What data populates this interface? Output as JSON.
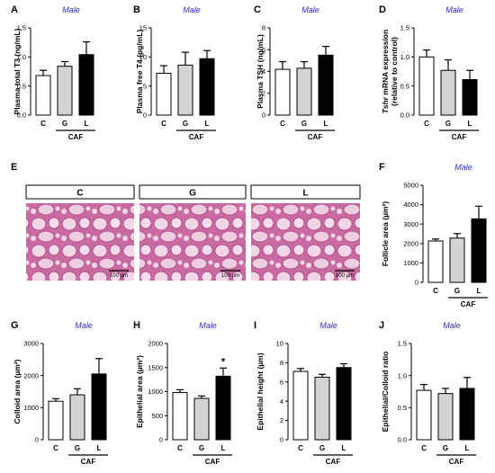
{
  "chart_data": [
    {
      "panel": "A",
      "type": "bar",
      "title": "Male",
      "ylabel": "Plasma total T3 (ng/mL)",
      "categories": [
        "C",
        "G",
        "L"
      ],
      "group_label": "CAF",
      "values": [
        0.68,
        0.84,
        1.04
      ],
      "errors": [
        0.09,
        0.08,
        0.22
      ],
      "ylim": [
        0,
        1.5
      ],
      "yticks": [
        "0.0",
        "0.5",
        "1.0",
        "1.5"
      ],
      "significance": [
        "",
        "",
        ""
      ]
    },
    {
      "panel": "B",
      "type": "bar",
      "title": "Male",
      "ylabel": "Plasma free T4 (pg/mL)",
      "categories": [
        "C",
        "G",
        "L"
      ],
      "group_label": "CAF",
      "values": [
        7.2,
        8.6,
        9.7
      ],
      "errors": [
        1.3,
        2.2,
        1.4
      ],
      "ylim": [
        0,
        15
      ],
      "yticks": [
        "0",
        "5",
        "10",
        "15"
      ],
      "significance": [
        "",
        "",
        ""
      ]
    },
    {
      "panel": "C",
      "type": "bar",
      "title": "Male",
      "ylabel": "Plasma TSH (ng/mL)",
      "categories": [
        "C",
        "G",
        "L"
      ],
      "group_label": "CAF",
      "values": [
        4.2,
        4.3,
        5.5
      ],
      "errors": [
        0.7,
        0.6,
        0.8
      ],
      "ylim": [
        0,
        8
      ],
      "yticks": [
        "0",
        "2",
        "4",
        "6",
        "8"
      ],
      "significance": [
        "",
        "",
        ""
      ]
    },
    {
      "panel": "D",
      "type": "bar",
      "title": "Male",
      "ylabel": "Tshr mRNA expression (relative to control)",
      "ylabel_italic": "Tshr",
      "ylabel_rest": " mRNA expression",
      "ylabel_line2": "(relative to control)",
      "categories": [
        "C",
        "G",
        "L"
      ],
      "group_label": "CAF",
      "values": [
        1.0,
        0.77,
        0.61
      ],
      "errors": [
        0.12,
        0.18,
        0.16
      ],
      "ylim": [
        0,
        1.5
      ],
      "yticks": [
        "0.0",
        "0.5",
        "1.0",
        "1.5"
      ],
      "significance": [
        "",
        "",
        ""
      ]
    },
    {
      "panel": "F",
      "type": "bar",
      "title": "Male",
      "ylabel": "Follicle area (µm²)",
      "categories": [
        "C",
        "G",
        "L"
      ],
      "group_label": "CAF",
      "values": [
        2130,
        2280,
        3270
      ],
      "errors": [
        100,
        230,
        650
      ],
      "ylim": [
        0,
        5000
      ],
      "yticks": [
        "0",
        "1000",
        "2000",
        "3000",
        "4000",
        "5000"
      ],
      "significance": [
        "",
        "",
        ""
      ]
    },
    {
      "panel": "G",
      "type": "bar",
      "title": "Male",
      "ylabel": "Colloid area (µm²)",
      "categories": [
        "C",
        "G",
        "L"
      ],
      "group_label": "CAF",
      "values": [
        1200,
        1400,
        2050
      ],
      "errors": [
        80,
        190,
        480
      ],
      "ylim": [
        0,
        3000
      ],
      "yticks": [
        "0",
        "1000",
        "2000",
        "3000"
      ],
      "significance": [
        "",
        "",
        ""
      ]
    },
    {
      "panel": "H",
      "type": "bar",
      "title": "Male",
      "ylabel": "Epithelial area (µm²)",
      "categories": [
        "C",
        "G",
        "L"
      ],
      "group_label": "CAF",
      "values": [
        980,
        860,
        1320
      ],
      "errors": [
        60,
        50,
        170
      ],
      "ylim": [
        0,
        2000
      ],
      "yticks": [
        "0",
        "500",
        "1000",
        "1500",
        "2000"
      ],
      "significance": [
        "",
        "",
        "*"
      ]
    },
    {
      "panel": "I",
      "type": "bar",
      "title": "Male",
      "ylabel": "Epithelial height (µm)",
      "categories": [
        "C",
        "G",
        "L"
      ],
      "group_label": "CAF",
      "values": [
        7.1,
        6.5,
        7.5
      ],
      "errors": [
        0.3,
        0.3,
        0.4
      ],
      "ylim": [
        0,
        10
      ],
      "yticks": [
        "0",
        "2",
        "4",
        "6",
        "8",
        "10"
      ],
      "significance": [
        "",
        "",
        ""
      ]
    },
    {
      "panel": "J",
      "type": "bar",
      "title": "Male",
      "ylabel": "Epithelial/Colloid ratio",
      "categories": [
        "C",
        "G",
        "L"
      ],
      "group_label": "CAF",
      "values": [
        0.77,
        0.72,
        0.8
      ],
      "errors": [
        0.09,
        0.08,
        0.17
      ],
      "ylim": [
        0,
        1.5
      ],
      "yticks": [
        "0.0",
        "0.5",
        "1.0",
        "1.5"
      ],
      "significance": [
        "",
        "",
        ""
      ]
    }
  ],
  "histology": {
    "panel": "E",
    "groups": [
      "C",
      "G",
      "L"
    ],
    "scale_bar": "100 µm"
  },
  "colors": {
    "C": "#ffffff",
    "G": "#d3d3d3",
    "L": "#000000",
    "title": "#2b2bd6",
    "tissue": "#e9b6d2",
    "stain": "#c9609e"
  }
}
